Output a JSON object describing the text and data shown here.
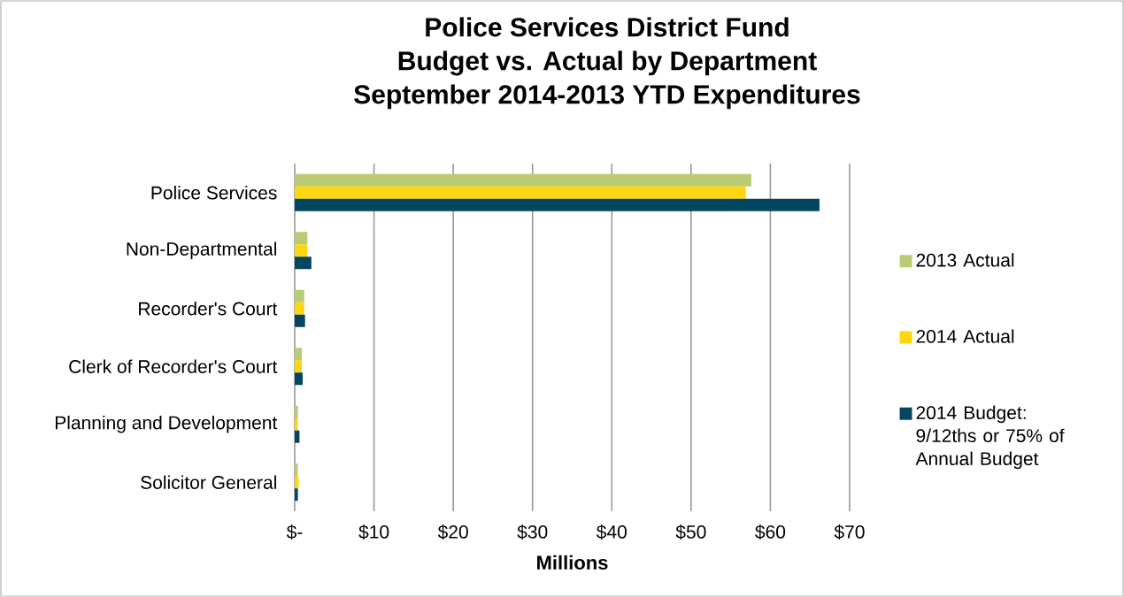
{
  "chart_data": {
    "type": "bar",
    "orientation": "horizontal",
    "title": "Police Services District Fund\nBudget vs. Actual by Department\nSeptember 2014-2013 YTD Expenditures",
    "xlabel": "Millions",
    "categories": [
      "Police Services",
      "Non-Departmental",
      "Recorder's Court",
      "Clerk of Recorder's Court",
      "Planning and Development",
      "Solicitor General"
    ],
    "series": [
      {
        "name": "2013 Actual",
        "color": "#b9cc72",
        "values": [
          57.6,
          1.6,
          1.2,
          0.9,
          0.4,
          0.4
        ]
      },
      {
        "name": "2014 Actual",
        "color": "#ffd60f",
        "values": [
          56.9,
          1.6,
          1.2,
          0.9,
          0.4,
          0.5
        ]
      },
      {
        "name": "2014 Budget: 9/12ths or 75% of Annual Budget",
        "color": "#03465f",
        "values": [
          66.2,
          2.1,
          1.3,
          1.0,
          0.6,
          0.4
        ]
      }
    ],
    "xlim": [
      0,
      70
    ],
    "xticks": [
      {
        "value": 0,
        "label": "$-"
      },
      {
        "value": 10,
        "label": "$10"
      },
      {
        "value": 20,
        "label": "$20"
      },
      {
        "value": 30,
        "label": "$30"
      },
      {
        "value": 40,
        "label": "$40"
      },
      {
        "value": 50,
        "label": "$50"
      },
      {
        "value": 60,
        "label": "$60"
      },
      {
        "value": 70,
        "label": "$70"
      }
    ],
    "grid": "x",
    "legend": "right"
  }
}
